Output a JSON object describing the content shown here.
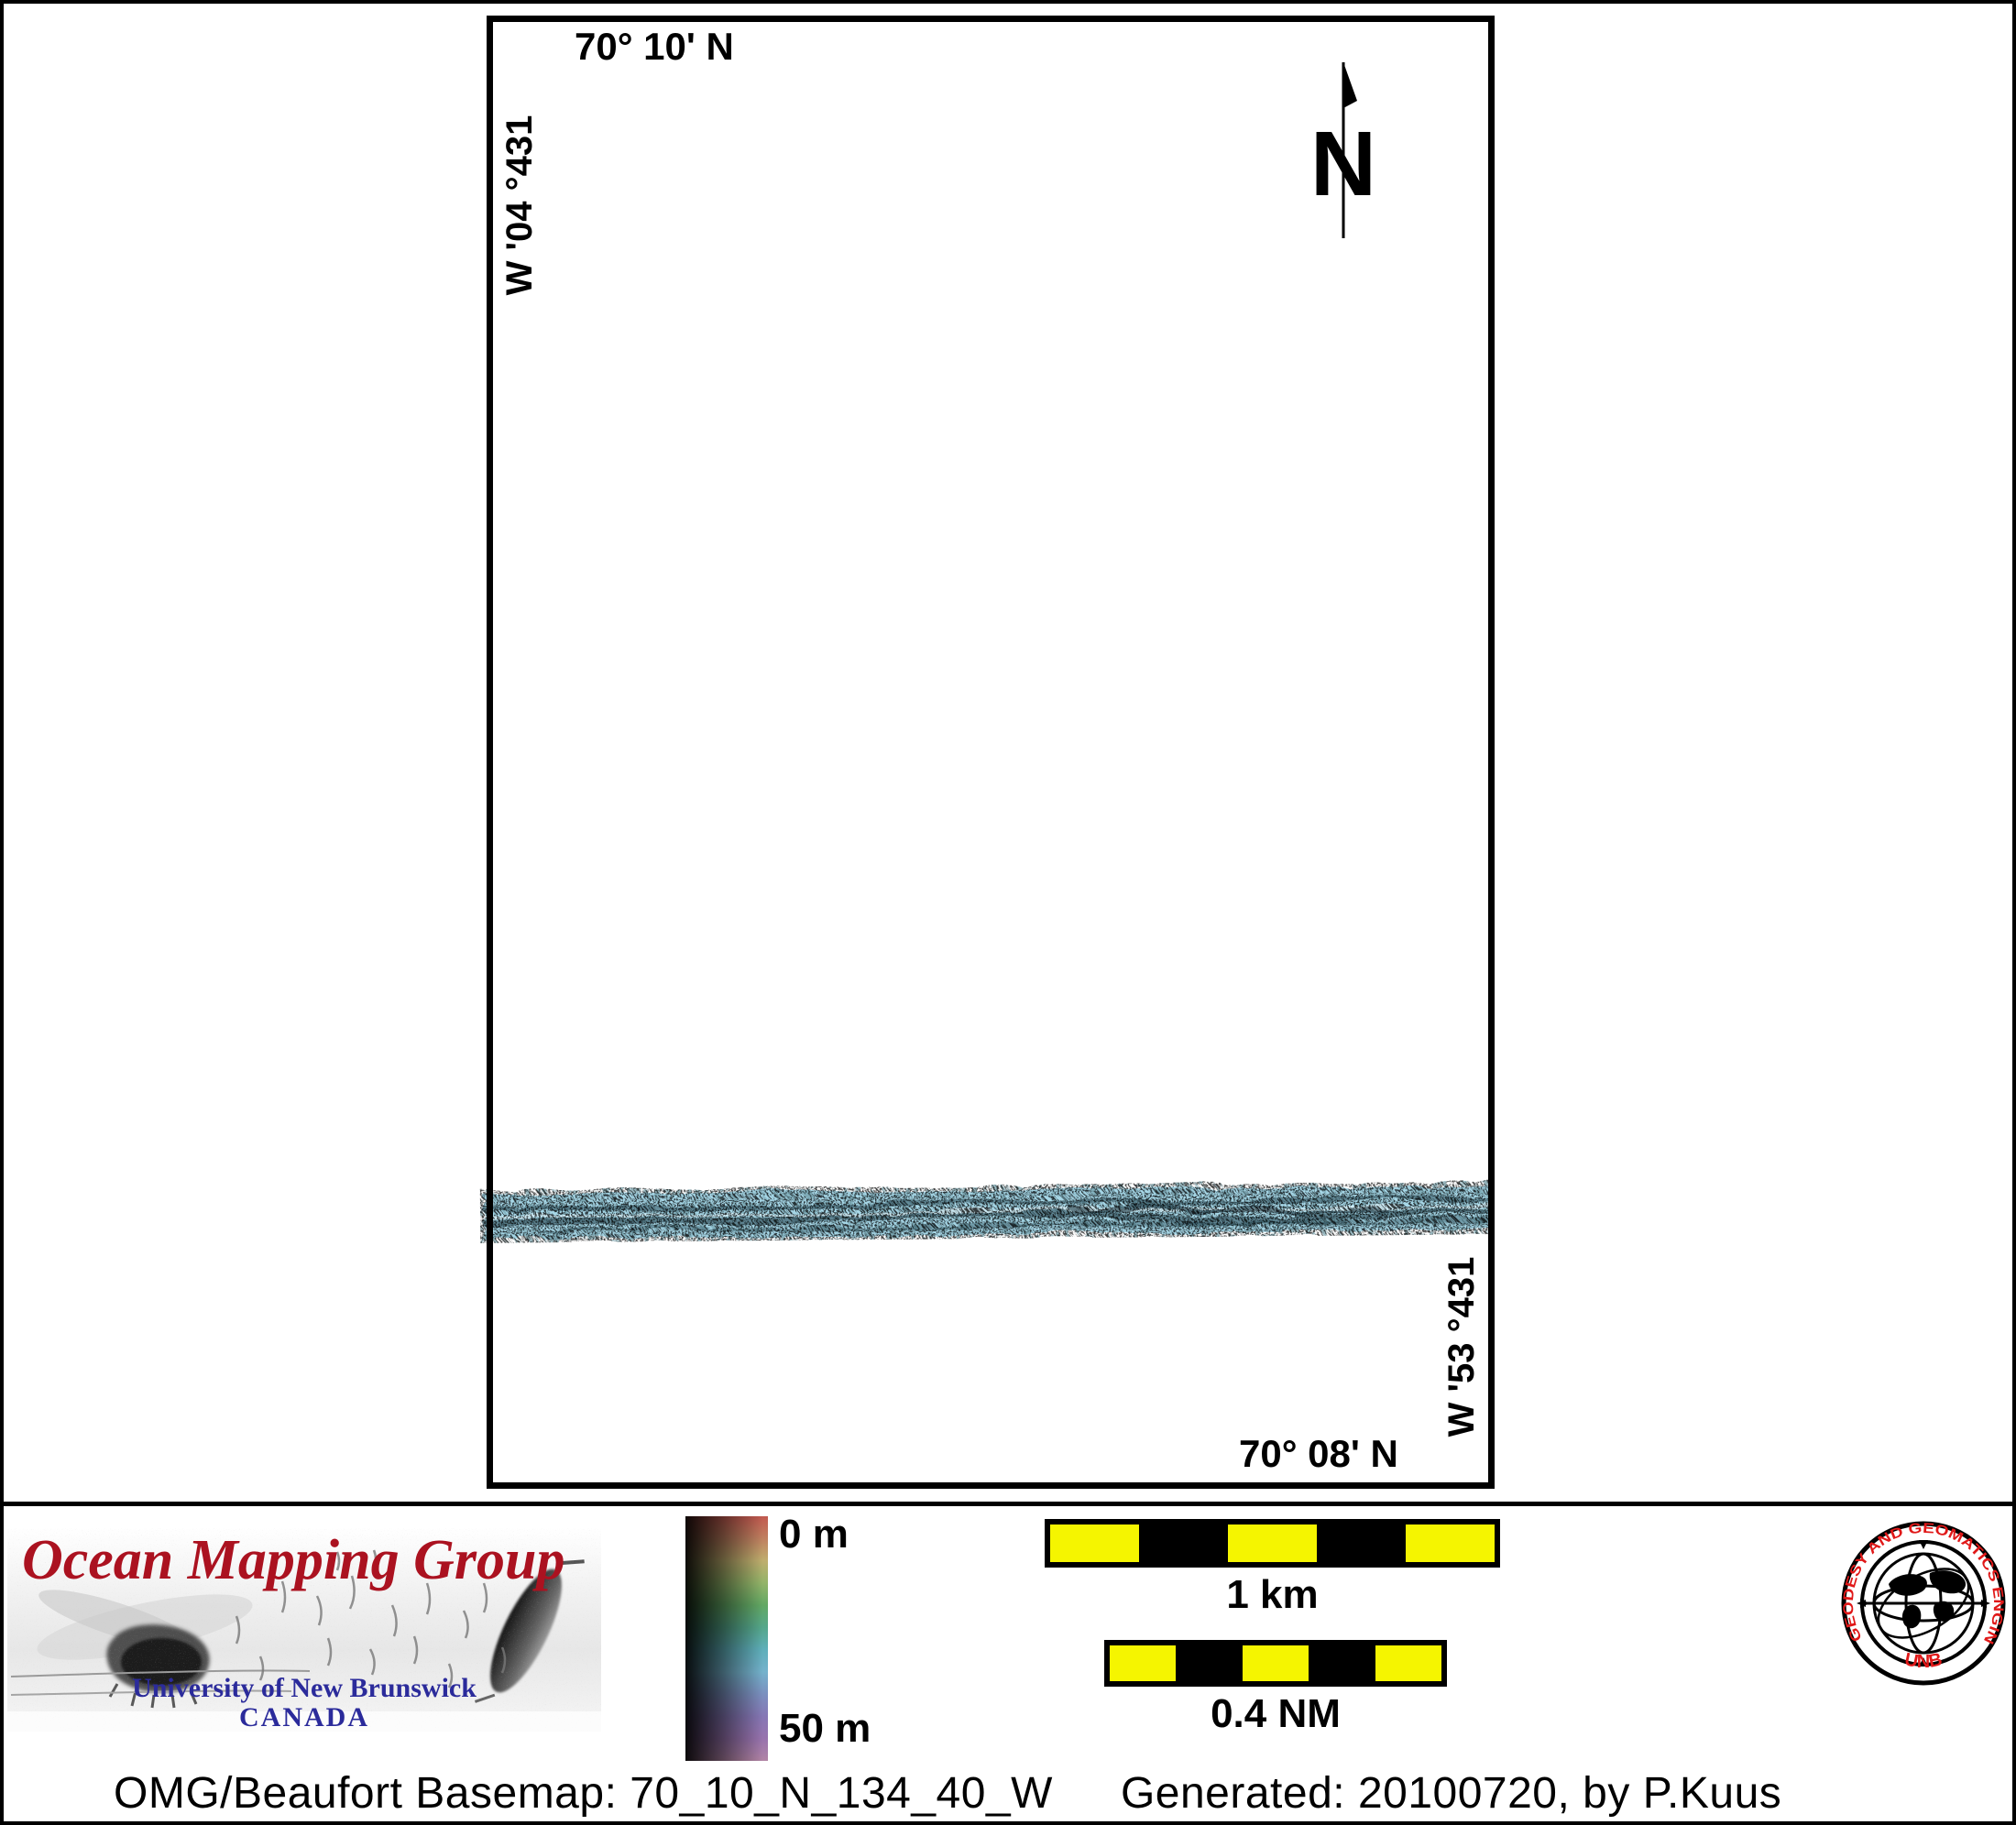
{
  "map": {
    "top_label": "70° 10' N",
    "left_label": "134° 40' W",
    "right_label": "134° 35' W",
    "bottom_label": "70° 08' N",
    "north_arrow_label": "N"
  },
  "swath": {
    "description": "multibeam-bathymetry-swath",
    "base_color": "#a7d8e8",
    "speckle_color": "#0d2430"
  },
  "footer": {
    "logo": {
      "title": "Ocean Mapping Group",
      "university": "University of New Brunswick",
      "country": "CANADA",
      "title_color": "#ab1220",
      "text_color": "#2b2b9b"
    },
    "colorbar": {
      "top_label": "0 m",
      "bottom_label": "50 m",
      "stops": [
        "#c25a50",
        "#c08060",
        "#bfae6e",
        "#93b469",
        "#62a864",
        "#55a78b",
        "#5fafba",
        "#74b2cc",
        "#7b90bf",
        "#8677b5",
        "#9873ae",
        "#b184a5"
      ]
    },
    "scalebars": [
      {
        "label": "1 km",
        "segments": [
          "#f5f500",
          "#000000",
          "#f5f500",
          "#000000",
          "#f5f500"
        ]
      },
      {
        "label": "0.4 NM",
        "segments": [
          "#f5f500",
          "#000000",
          "#f5f500",
          "#000000",
          "#f5f500"
        ]
      }
    ],
    "seal": {
      "ring_text": "GEODESY AND GEOMATICS ENGINEERING",
      "org": "UNB",
      "accent_color": "#e01818"
    },
    "caption": {
      "basemap": "OMG/Beaufort Basemap: 70_10_N_134_40_W",
      "generated": "Generated: 20100720, by P.Kuus"
    }
  }
}
